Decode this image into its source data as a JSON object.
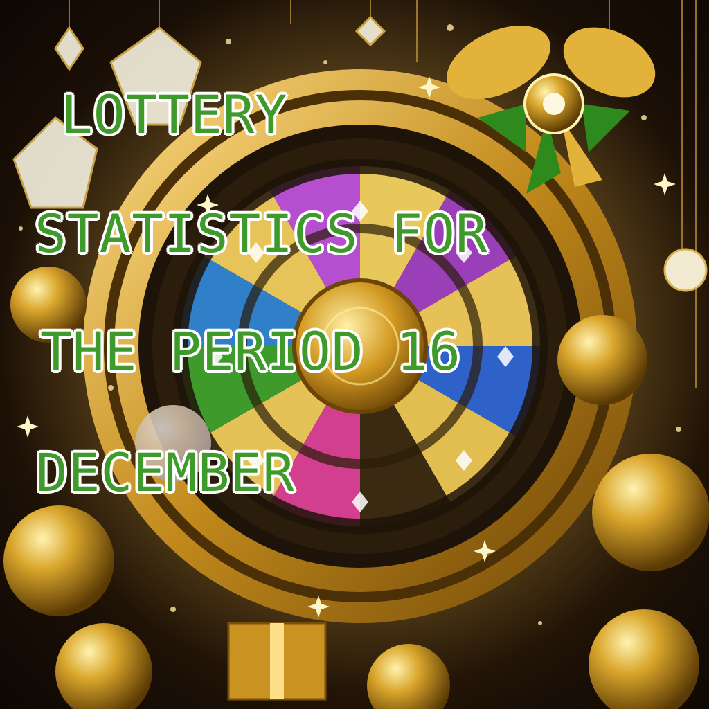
{
  "headline": {
    "line1": "LOTTERY",
    "line2": "STATISTICS FOR",
    "line3": "THE PERIOD 16",
    "line4": "DECEMBER"
  },
  "image": {
    "subject": "golden-prize-wheel",
    "colors": {
      "gold": "#d4a32a",
      "text": "#3f9a2c",
      "text_outline": "#ffffff",
      "ribbon_green": "#2f8a1e"
    }
  }
}
